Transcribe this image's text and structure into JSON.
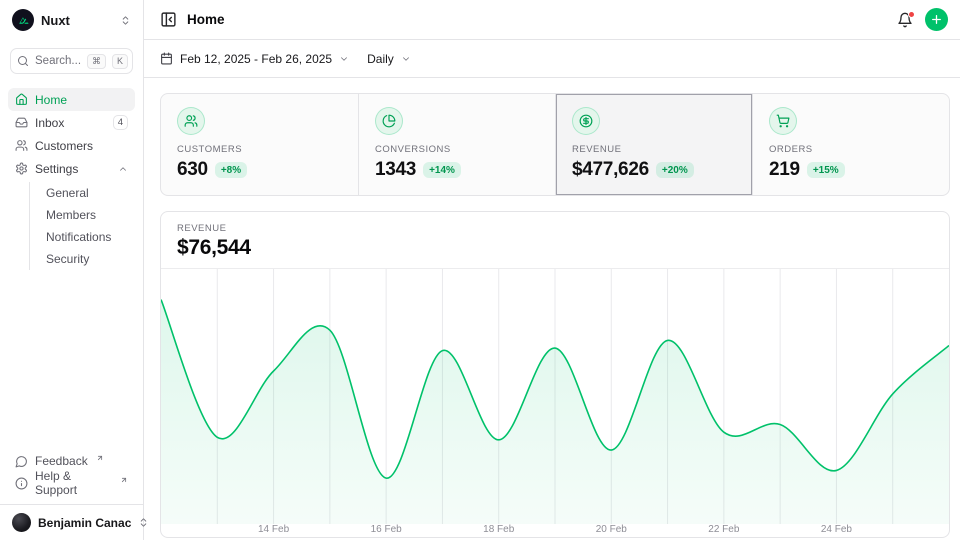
{
  "sidebar": {
    "workspace": {
      "name": "Nuxt"
    },
    "search": {
      "placeholder": "Search...",
      "kbd": [
        "⌘",
        "K"
      ]
    },
    "nav": [
      {
        "label": "Home",
        "active": true
      },
      {
        "label": "Inbox",
        "badge": "4"
      },
      {
        "label": "Customers"
      },
      {
        "label": "Settings",
        "expanded": true,
        "children": [
          "General",
          "Members",
          "Notifications",
          "Security"
        ]
      }
    ],
    "footer_links": [
      {
        "label": "Feedback"
      },
      {
        "label": "Help & Support"
      }
    ],
    "user": {
      "name": "Benjamin Canac"
    }
  },
  "header": {
    "title": "Home"
  },
  "toolbar": {
    "date_range": "Feb 12, 2025 - Feb 26, 2025",
    "period": "Daily"
  },
  "stats": [
    {
      "label": "CUSTOMERS",
      "value": "630",
      "delta": "+8%",
      "selected": false
    },
    {
      "label": "CONVERSIONS",
      "value": "1343",
      "delta": "+14%",
      "selected": false
    },
    {
      "label": "REVENUE",
      "value": "$477,626",
      "delta": "+20%",
      "selected": true
    },
    {
      "label": "ORDERS",
      "value": "219",
      "delta": "+15%",
      "selected": false
    }
  ],
  "chart_card": {
    "label": "REVENUE",
    "value": "$76,544"
  },
  "chart_data": {
    "type": "area",
    "title": "Revenue (daily)",
    "x": [
      "Feb 12",
      "Feb 13",
      "Feb 14",
      "Feb 15",
      "Feb 16",
      "Feb 17",
      "Feb 18",
      "Feb 19",
      "Feb 20",
      "Feb 21",
      "Feb 22",
      "Feb 23",
      "Feb 24",
      "Feb 25",
      "Feb 26"
    ],
    "values": [
      88,
      34,
      60,
      76,
      18,
      68,
      33,
      69,
      29,
      72,
      36,
      39,
      21,
      51,
      70
    ],
    "ylabel": "percent of plot height (y-axis unlabeled in UI)",
    "ylim": [
      0,
      100
    ],
    "grid": "vertical-only",
    "legend": "none",
    "x_tick_labels": [
      "14 Feb",
      "16 Feb",
      "18 Feb",
      "20 Feb",
      "22 Feb",
      "24 Feb"
    ],
    "x_tick_positions": [
      2,
      4,
      6,
      8,
      10,
      12
    ],
    "line_color": "#00c16a",
    "fill_top": "rgba(0,193,106,0.13)",
    "fill_bottom": "rgba(0,193,106,0.04)",
    "gridline_color": "#e9e9ec"
  },
  "colors": {
    "primary": "#00c16a",
    "notification_dot": "#ef4444",
    "border": "#e4e4e7"
  }
}
